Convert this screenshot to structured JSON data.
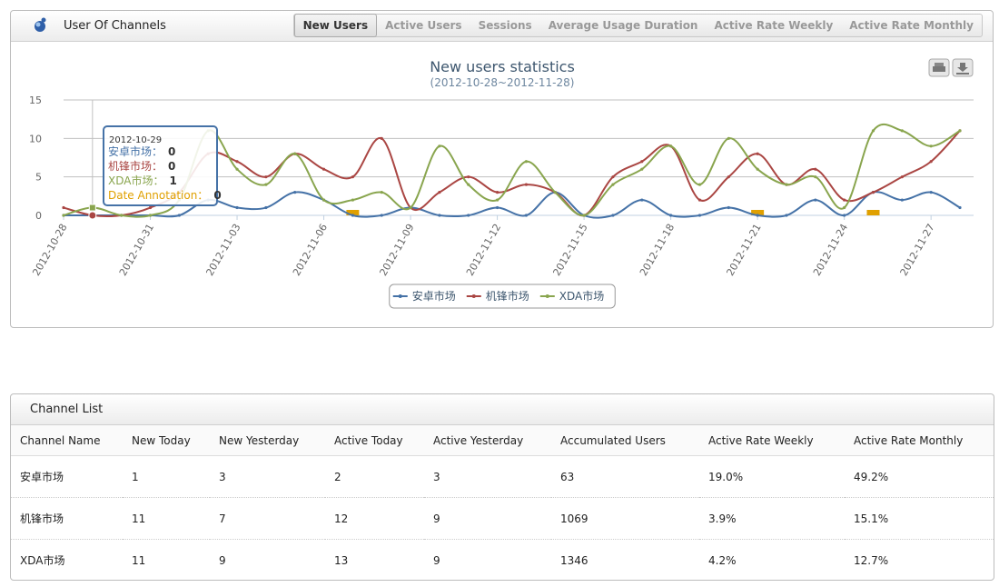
{
  "header": {
    "title": "User Of Channels",
    "tabs": [
      "New Users",
      "Active Users",
      "Sessions",
      "Average Usage Duration",
      "Active Rate Weekly",
      "Active Rate Monthly"
    ],
    "active_tab": 0
  },
  "chart_data": {
    "type": "spline",
    "title": "New users statistics",
    "subtitle": "(2012-10-28~2012-11-28)",
    "x": [
      "2012-10-28",
      "2012-10-29",
      "2012-10-30",
      "2012-10-31",
      "2012-11-01",
      "2012-11-02",
      "2012-11-03",
      "2012-11-04",
      "2012-11-05",
      "2012-11-06",
      "2012-11-07",
      "2012-11-08",
      "2012-11-09",
      "2012-11-10",
      "2012-11-11",
      "2012-11-12",
      "2012-11-13",
      "2012-11-14",
      "2012-11-15",
      "2012-11-16",
      "2012-11-17",
      "2012-11-18",
      "2012-11-19",
      "2012-11-20",
      "2012-11-21",
      "2012-11-22",
      "2012-11-23",
      "2012-11-24",
      "2012-11-25",
      "2012-11-26",
      "2012-11-27",
      "2012-11-28"
    ],
    "xticks": [
      "2012-10-28",
      "2012-10-31",
      "2012-11-03",
      "2012-11-06",
      "2012-11-09",
      "2012-11-12",
      "2012-11-15",
      "2012-11-18",
      "2012-11-21",
      "2012-11-24",
      "2012-11-27"
    ],
    "ylim": [
      0,
      15
    ],
    "yticks": [
      0,
      5,
      10,
      15
    ],
    "grid": true,
    "legend": "bottom",
    "series": [
      {
        "name": "安卓市场",
        "color": "#4572a7",
        "values": [
          0,
          0,
          0,
          0,
          0,
          2,
          1,
          1,
          3,
          2,
          0,
          0,
          1,
          0,
          0,
          1,
          0,
          3,
          0,
          0,
          2,
          0,
          0,
          1,
          0,
          0,
          2,
          0,
          3,
          2,
          3,
          1
        ]
      },
      {
        "name": "机锋市场",
        "color": "#aa4643",
        "values": [
          1,
          0,
          0,
          1,
          3,
          8,
          7,
          5,
          8,
          6,
          5,
          10,
          1,
          3,
          5,
          3,
          4,
          3,
          0,
          5,
          7,
          9,
          2,
          5,
          8,
          4,
          6,
          2,
          3,
          5,
          7,
          11
        ]
      },
      {
        "name": "XDA市场",
        "color": "#89a54e",
        "values": [
          0,
          1,
          0,
          0,
          2,
          11,
          6,
          4,
          8,
          2,
          2,
          3,
          1,
          9,
          4,
          2,
          7,
          3,
          0,
          4,
          6,
          9,
          4,
          10,
          6,
          4,
          5,
          1,
          11,
          11,
          9,
          11
        ]
      }
    ],
    "annotation_dates": [
      "2012-11-07",
      "2012-11-21",
      "2012-11-25"
    ],
    "annotation_color": "#e0a000",
    "tooltip": {
      "x": "2012-10-29",
      "items": [
        {
          "label": "安卓市场：",
          "value": 0
        },
        {
          "label": "机锋市场：",
          "value": 0
        },
        {
          "label": "XDA市场：",
          "value": 1
        }
      ],
      "annotation": {
        "label": "Date Annotation：",
        "value": 0
      }
    }
  },
  "table": {
    "title": "Channel List",
    "columns": [
      "Channel Name",
      "New Today",
      "New Yesterday",
      "Active Today",
      "Active Yesterday",
      "Accumulated Users",
      "Active Rate Weekly",
      "Active Rate Monthly"
    ],
    "rows": [
      [
        "安卓市场",
        "1",
        "3",
        "2",
        "3",
        "63",
        "19.0%",
        "49.2%"
      ],
      [
        "机锋市场",
        "11",
        "7",
        "12",
        "9",
        "1069",
        "3.9%",
        "15.1%"
      ],
      [
        "XDA市场",
        "11",
        "9",
        "13",
        "9",
        "1346",
        "4.2%",
        "12.7%"
      ]
    ]
  }
}
